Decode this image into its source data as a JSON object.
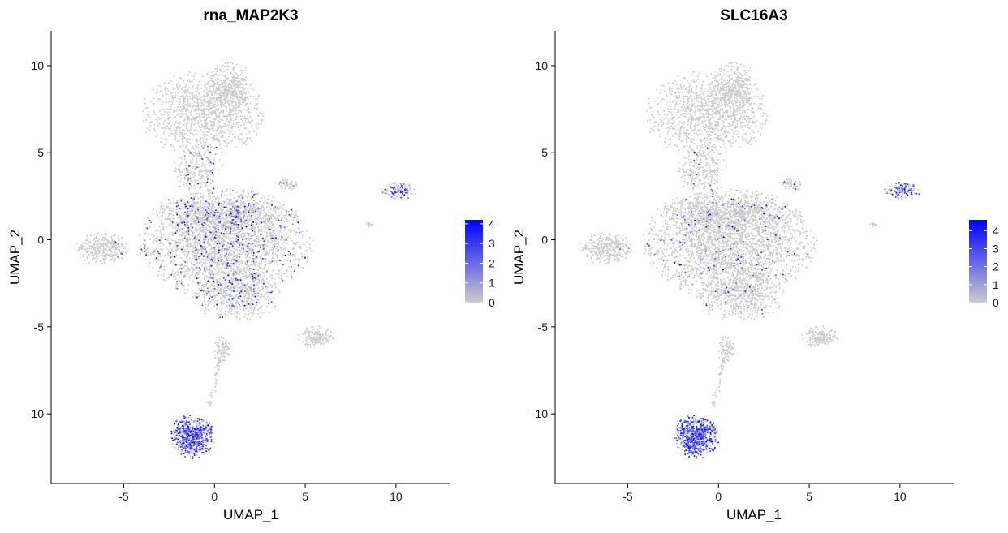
{
  "chart_data": [
    {
      "type": "scatter",
      "title": "rna_MAP2K3",
      "xlabel": "UMAP_1",
      "ylabel": "UMAP_2",
      "xlim": [
        -9,
        13
      ],
      "ylim": [
        -14,
        12
      ],
      "x_ticks": [
        -5,
        0,
        5,
        10
      ],
      "y_ticks": [
        -10,
        -5,
        0,
        5,
        10
      ],
      "x_tick_labels": [
        "-5",
        "0",
        "5",
        "10"
      ],
      "y_tick_labels": [
        "-10",
        "-5",
        "0",
        "5",
        "10"
      ],
      "color_scale": {
        "low": "#cccccc",
        "high": "#0000ff",
        "min": 0,
        "max": 4.2
      },
      "legend_ticks": [
        4,
        3,
        2,
        1,
        0
      ],
      "legend_tick_labels": [
        "4",
        "3",
        "2",
        "1",
        "0"
      ],
      "legend_placement": "right",
      "grid": false,
      "highlight_clusters": [
        {
          "x": -1.2,
          "y": -11.3,
          "level": 0.55
        },
        {
          "x": 10.2,
          "y": 3.0,
          "level": 0.3
        },
        {
          "x": 0.0,
          "y": 0.0,
          "level": 0.12
        }
      ]
    },
    {
      "type": "scatter",
      "title": "SLC16A3",
      "xlabel": "UMAP_1",
      "ylabel": "UMAP_2",
      "xlim": [
        -9,
        13
      ],
      "ylim": [
        -14,
        12
      ],
      "x_ticks": [
        -5,
        0,
        5,
        10
      ],
      "y_ticks": [
        -10,
        -5,
        0,
        5,
        10
      ],
      "x_tick_labels": [
        "-5",
        "0",
        "5",
        "10"
      ],
      "y_tick_labels": [
        "-10",
        "-5",
        "0",
        "5",
        "10"
      ],
      "color_scale": {
        "low": "#cccccc",
        "high": "#0000ff",
        "min": 0,
        "max": 4.6
      },
      "legend_ticks": [
        4,
        3,
        2,
        1,
        0
      ],
      "legend_tick_labels": [
        "4",
        "3",
        "2",
        "1",
        "0"
      ],
      "legend_placement": "right",
      "grid": false,
      "highlight_clusters": [
        {
          "x": -1.2,
          "y": -11.3,
          "level": 0.75
        },
        {
          "x": 10.2,
          "y": 3.0,
          "level": 0.45
        },
        {
          "x": 0.0,
          "y": 0.0,
          "level": 0.04
        }
      ]
    }
  ],
  "umap_regions": [
    {
      "name": "top-lobe",
      "cx": -0.6,
      "cy": 7.2,
      "rx": 3.0,
      "ry": 2.2,
      "n": 1100
    },
    {
      "name": "top-lobe-right",
      "cx": 0.8,
      "cy": 8.8,
      "rx": 1.2,
      "ry": 1.3,
      "n": 350
    },
    {
      "name": "neck",
      "cx": -0.9,
      "cy": 4.0,
      "rx": 1.2,
      "ry": 1.3,
      "n": 220
    },
    {
      "name": "main-body",
      "cx": 0.6,
      "cy": -0.2,
      "rx": 4.2,
      "ry": 2.8,
      "n": 2600
    },
    {
      "name": "main-body-upper",
      "cx": 0.4,
      "cy": 1.6,
      "rx": 3.4,
      "ry": 0.9,
      "n": 600
    },
    {
      "name": "body-lower",
      "cx": 1.2,
      "cy": -3.2,
      "rx": 2.1,
      "ry": 1.3,
      "n": 500
    },
    {
      "name": "left-arm",
      "cx": -6.2,
      "cy": -0.5,
      "rx": 1.3,
      "ry": 0.8,
      "n": 320
    },
    {
      "name": "upper-right-small",
      "cx": 4.0,
      "cy": 3.2,
      "rx": 0.6,
      "ry": 0.3,
      "n": 60
    },
    {
      "name": "right-lobe",
      "cx": 5.6,
      "cy": -5.6,
      "rx": 0.9,
      "ry": 0.55,
      "n": 170
    },
    {
      "name": "lower-stem",
      "cx": 0.4,
      "cy": -6.3,
      "rx": 0.4,
      "ry": 0.7,
      "n": 90
    },
    {
      "name": "bottom-cluster",
      "cx": -1.2,
      "cy": -11.3,
      "rx": 1.1,
      "ry": 1.1,
      "n": 650
    },
    {
      "name": "far-right",
      "cx": 10.1,
      "cy": 2.8,
      "rx": 0.9,
      "ry": 0.45,
      "n": 130
    },
    {
      "name": "far-right-tip",
      "cx": 8.5,
      "cy": 0.9,
      "rx": 0.2,
      "ry": 0.2,
      "n": 15
    }
  ]
}
